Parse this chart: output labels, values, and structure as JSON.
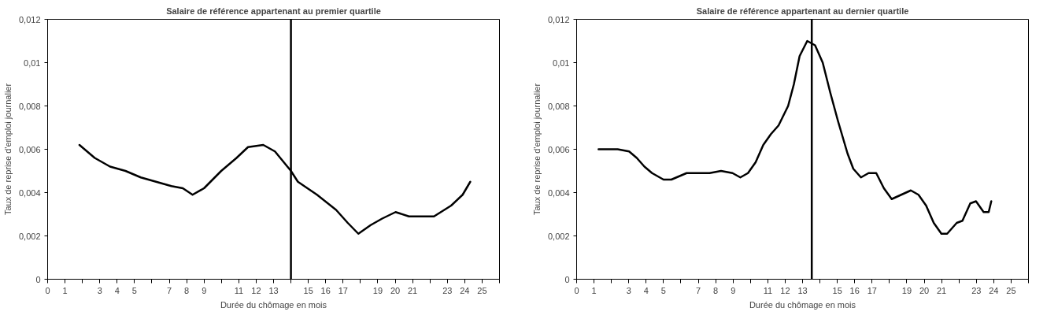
{
  "chart_data": [
    {
      "type": "line",
      "title": "Salaire de référence appartenant au premier quartile",
      "xlabel": "Durée du chômage en mois",
      "ylabel": "Taux de reprise d'emploi journalier",
      "xlim": [
        0,
        26
      ],
      "ylim": [
        0,
        0.012
      ],
      "yticks": [
        {
          "value": 0,
          "label": "0"
        },
        {
          "value": 0.002,
          "label": "0,002"
        },
        {
          "value": 0.004,
          "label": "0,004"
        },
        {
          "value": 0.006,
          "label": "0,006"
        },
        {
          "value": 0.008,
          "label": "0,008"
        },
        {
          "value": 0.01,
          "label": "0,01"
        },
        {
          "value": 0.012,
          "label": "0,012"
        }
      ],
      "xticks": [
        0,
        1,
        {
          "value": 2,
          "label": null
        },
        3,
        4,
        5,
        {
          "value": 6,
          "label": null
        },
        7,
        8,
        9,
        {
          "value": 10,
          "label": null
        },
        11,
        12,
        13,
        {
          "value": 14,
          "label": null
        },
        15,
        16,
        17,
        {
          "value": 18,
          "label": null
        },
        19,
        20,
        21,
        {
          "value": 22,
          "label": null
        },
        23,
        24,
        25,
        {
          "value": 26,
          "label": null
        }
      ],
      "marker": "none",
      "line_style": "solid",
      "series": [
        {
          "color": "#000000",
          "x": [
            1.83,
            2.71,
            3.59,
            4.48,
            5.36,
            6.24,
            7.12,
            7.78,
            8.34,
            9.0,
            9.99,
            10.87,
            11.53,
            12.41,
            13.08,
            14.0,
            14.4,
            15.5,
            16.6,
            17.27,
            17.88,
            18.59,
            19.25,
            20.02,
            20.79,
            21.68,
            22.23,
            23.22,
            23.88,
            24.32
          ],
          "values": [
            0.0062,
            0.0056,
            0.0052,
            0.005,
            0.0047,
            0.0045,
            0.0043,
            0.0042,
            0.0039,
            0.0042,
            0.005,
            0.0056,
            0.0061,
            0.0062,
            0.0059,
            0.005,
            0.0045,
            0.0039,
            0.0032,
            0.0026,
            0.0021,
            0.0025,
            0.0028,
            0.0031,
            0.0029,
            0.0029,
            0.0029,
            0.0034,
            0.0039,
            0.0045
          ]
        }
      ],
      "ref_lines": [
        {
          "axis": "x",
          "value": 14,
          "color": "#000000"
        }
      ]
    },
    {
      "type": "line",
      "title": "Salaire de référence appartenant au dernier quartile",
      "xlabel": "Durée du chômage en mois",
      "ylabel": "Taux de reprise d'emploi journalier",
      "xlim": [
        0,
        26
      ],
      "ylim": [
        0,
        0.012
      ],
      "yticks": [
        {
          "value": 0,
          "label": "0"
        },
        {
          "value": 0.002,
          "label": "0,002"
        },
        {
          "value": 0.004,
          "label": "0,004"
        },
        {
          "value": 0.006,
          "label": "0,006"
        },
        {
          "value": 0.008,
          "label": "0,008"
        },
        {
          "value": 0.01,
          "label": "0,01"
        },
        {
          "value": 0.012,
          "label": "0,012"
        }
      ],
      "xticks": [
        0,
        1,
        {
          "value": 2,
          "label": null
        },
        3,
        4,
        5,
        {
          "value": 6,
          "label": null
        },
        7,
        8,
        9,
        {
          "value": 10,
          "label": null
        },
        11,
        12,
        13,
        {
          "value": 14,
          "label": null
        },
        15,
        16,
        17,
        {
          "value": 18,
          "label": null
        },
        19,
        20,
        21,
        {
          "value": 22,
          "label": null
        },
        23,
        24,
        25,
        {
          "value": 26,
          "label": null
        }
      ],
      "marker": "none",
      "line_style": "solid",
      "series": [
        {
          "color": "#000000",
          "x": [
            1.26,
            1.59,
            2.36,
            3.02,
            3.46,
            3.9,
            4.34,
            5.0,
            5.45,
            6.33,
            6.99,
            7.65,
            8.31,
            8.97,
            9.42,
            9.86,
            10.3,
            10.74,
            11.18,
            11.62,
            12.17,
            12.5,
            12.83,
            13.27,
            13.72,
            14.16,
            14.6,
            15.04,
            15.59,
            15.92,
            16.36,
            16.8,
            17.24,
            17.68,
            18.13,
            18.68,
            19.23,
            19.67,
            20.11,
            20.55,
            20.99,
            21.32,
            21.87,
            22.2,
            22.65,
            22.98,
            23.42,
            23.71,
            23.86
          ],
          "values": [
            0.006,
            0.006,
            0.006,
            0.0059,
            0.0056,
            0.0052,
            0.0049,
            0.0046,
            0.0046,
            0.0049,
            0.0049,
            0.0049,
            0.005,
            0.0049,
            0.0047,
            0.0049,
            0.0054,
            0.0062,
            0.0067,
            0.0071,
            0.008,
            0.009,
            0.0103,
            0.011,
            0.0108,
            0.01,
            0.0086,
            0.0073,
            0.0058,
            0.0051,
            0.0047,
            0.0049,
            0.0049,
            0.0042,
            0.0037,
            0.0039,
            0.0041,
            0.0039,
            0.0034,
            0.0026,
            0.0021,
            0.0021,
            0.0026,
            0.0027,
            0.0035,
            0.0036,
            0.0031,
            0.0031,
            0.0036
          ]
        }
      ],
      "ref_lines": [
        {
          "axis": "x",
          "value": 13.53,
          "color": "#000000"
        }
      ]
    }
  ]
}
